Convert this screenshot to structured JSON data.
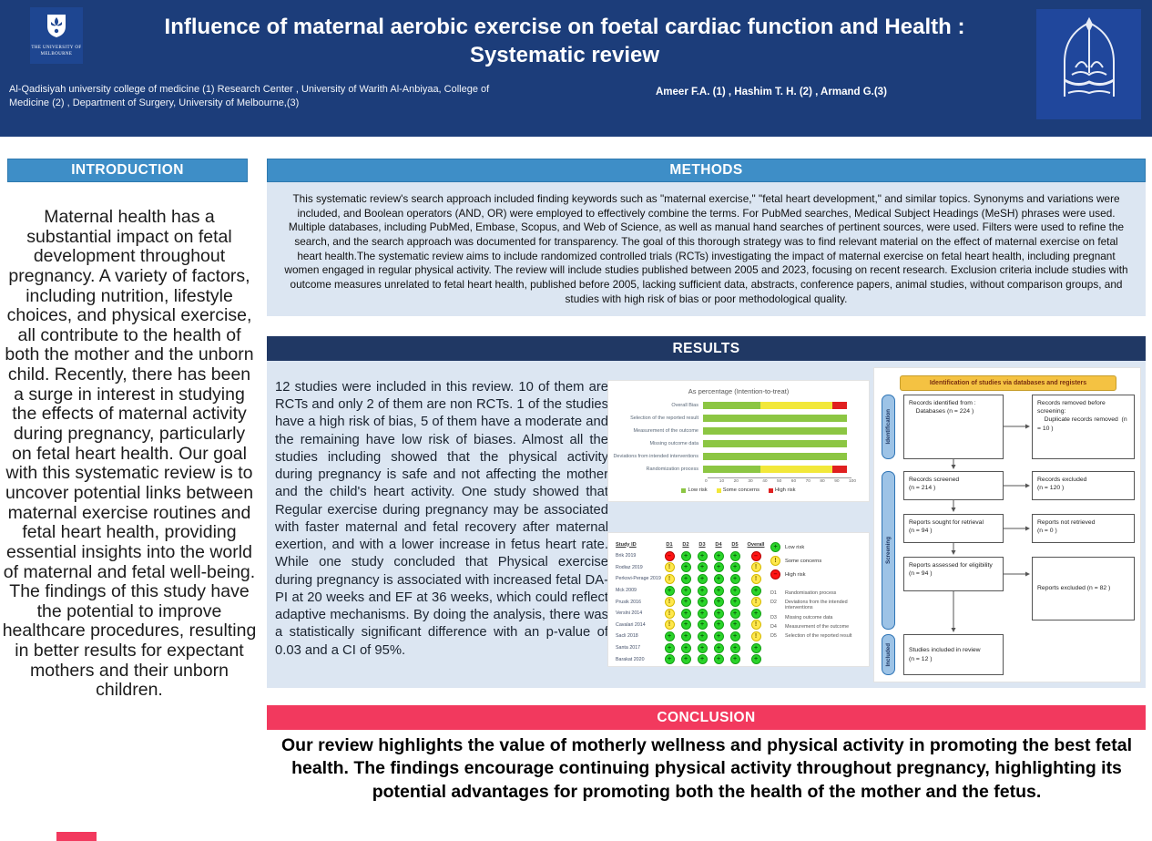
{
  "header": {
    "title_line1": "Influence of maternal aerobic exercise on foetal cardiac function and Health :",
    "title_line2": "Systematic review",
    "affiliations": "Al-Qadisiyah university college of medicine (1)  Research Center , University of Warith Al-Anbiyaa, College of Medicine (2) ,  Department of Surgery, University of Melbourne,(3)",
    "authors": "Ameer F.A. (1) , Hashim T. H. (2)  , Armand G.(3)",
    "melbourne_logo_caption_line1": "THE UNIVERSITY OF",
    "melbourne_logo_caption_line2": "MELBOURNE"
  },
  "introduction": {
    "heading": "INTRODUCTION",
    "body": "Maternal health has a substantial impact on fetal development throughout pregnancy. A variety of factors, including nutrition, lifestyle choices, and physical exercise, all contribute to the health of both the mother and the unborn child. Recently, there has been a surge in interest in studying the effects of maternal activity during pregnancy, particularly on fetal heart health. Our goal with this systematic review is to uncover potential links between maternal exercise routines and fetal heart health, providing essential insights into the world of maternal and fetal well-being. The findings of this study have the potential to improve healthcare procedures, resulting in better results for expectant mothers and their unborn children."
  },
  "methods": {
    "heading": "METHODS",
    "body": "This systematic review's search approach included finding keywords such as \"maternal exercise,\" \"fetal heart development,\" and similar topics. Synonyms and variations were included, and Boolean operators (AND, OR) were employed to effectively combine the terms. For PubMed searches, Medical Subject Headings (MeSH) phrases were used. Multiple databases, including PubMed, Embase, Scopus, and Web of Science, as well as manual hand searches of pertinent sources, were used. Filters were used to refine the search, and the search approach was documented for transparency. The goal of this thorough strategy was to find relevant material on the effect of maternal exercise on fetal heart health.The systematic review aims to include randomized controlled trials (RCTs) investigating the impact of maternal exercise on fetal heart health, including pregnant women engaged in regular physical activity. The review will include studies published between 2005 and 2023, focusing on recent research. Exclusion criteria include studies with outcome measures unrelated to fetal heart health, published before 2005, lacking sufficient data, abstracts, conference papers, animal studies, without comparison groups, and studies with high risk of bias or poor methodological quality."
  },
  "results": {
    "heading": "RESULTS",
    "body": "12 studies were included in this review. 10 of them are RCTs and only 2 of them are non RCTs. 1 of the studies have a high risk of bias, 5 of them have a moderate and the remaining have low risk of biases. Almost all the studies including showed that the physical activity during pregnancy is safe and not affecting the mother and the child's heart activity. One study showed that Regular exercise during pregnancy may be associated with faster maternal and fetal recovery after maternal exertion, and with a lower increase in fetus heart rate. While one study concluded that Physical exercise during pregnancy is associated with increased fetal DA-PI at 20 weeks and EF at 36 weeks, which could reflect adaptive mechanisms. By doing the analysis, there was a statistically significant difference with an p-value of 0.03 and a CI of 95%."
  },
  "conclusion": {
    "heading": "CONCLUSION",
    "body": "Our review highlights the value of motherly wellness and physical activity in promoting the best fetal health. The findings encourage continuing physical activity throughout pregnancy, highlighting its potential advantages for promoting both the health of the mother and the fetus."
  },
  "chart_data": [
    {
      "type": "bar",
      "stacked": true,
      "orientation": "horizontal",
      "title": "As percentage (Intention-to-treat)",
      "categories": [
        "Overall Bias",
        "Selection of the reported result",
        "Measurement of the outcome",
        "Missing outcome data",
        "Deviations from intended interventions",
        "Randomization process"
      ],
      "series": [
        {
          "name": "Low risk",
          "color": "#8cc643",
          "values": [
            40,
            100,
            100,
            100,
            100,
            40
          ]
        },
        {
          "name": "Some concerns",
          "color": "#f2e83a",
          "values": [
            50,
            0,
            0,
            0,
            0,
            50
          ]
        },
        {
          "name": "High risk",
          "color": "#e02020",
          "values": [
            10,
            0,
            0,
            0,
            0,
            10
          ]
        }
      ],
      "xlim": [
        0,
        100
      ],
      "xticks": [
        0,
        10,
        20,
        30,
        40,
        50,
        60,
        70,
        80,
        90,
        100
      ],
      "legend_position": "bottom",
      "grid": false
    },
    {
      "type": "table",
      "columns": [
        "Study ID",
        "D1",
        "D2",
        "D3",
        "D4",
        "D5",
        "Overall"
      ],
      "rows": [
        {
          "study": "Brik 2019",
          "ratings": [
            "high",
            "low",
            "low",
            "low",
            "low",
            "high"
          ]
        },
        {
          "study": "Rodiaz 2019",
          "ratings": [
            "some",
            "low",
            "low",
            "low",
            "low",
            "some"
          ]
        },
        {
          "study": "Perkovi-Perage 2019",
          "ratings": [
            "some",
            "low",
            "low",
            "low",
            "low",
            "some"
          ]
        },
        {
          "study": "Mck 2009",
          "ratings": [
            "low",
            "low",
            "low",
            "low",
            "low",
            "low"
          ]
        },
        {
          "study": "Prusik 2016",
          "ratings": [
            "some",
            "low",
            "low",
            "low",
            "low",
            "some"
          ]
        },
        {
          "study": "Verslni 2014",
          "ratings": [
            "some",
            "low",
            "low",
            "low",
            "low",
            "low"
          ]
        },
        {
          "study": "Cavalari 2014",
          "ratings": [
            "some",
            "low",
            "low",
            "low",
            "low",
            "some"
          ]
        },
        {
          "study": "Sacli 2018",
          "ratings": [
            "low",
            "low",
            "low",
            "low",
            "low",
            "some"
          ]
        },
        {
          "study": "Santa 2017",
          "ratings": [
            "low",
            "low",
            "low",
            "low",
            "low",
            "low"
          ]
        },
        {
          "study": "Barakat 2020",
          "ratings": [
            "low",
            "low",
            "low",
            "low",
            "low",
            "low"
          ]
        }
      ],
      "legend": [
        {
          "level": "low",
          "symbol": "+",
          "label": "Low risk"
        },
        {
          "level": "some",
          "symbol": "!",
          "label": "Some concerns"
        },
        {
          "level": "high",
          "symbol": "–",
          "label": "High risk"
        }
      ],
      "domains": [
        {
          "code": "D1",
          "label": "Randomisation process"
        },
        {
          "code": "D2",
          "label": "Deviations from the intended interventions"
        },
        {
          "code": "D3",
          "label": "Missing outcome data"
        },
        {
          "code": "D4",
          "label": "Measurement of the outcome"
        },
        {
          "code": "D5",
          "label": "Selection of the reported result"
        }
      ],
      "rating_colors": {
        "low": "#2ad42a",
        "some": "#ffe84d",
        "high": "#ff1414"
      }
    }
  ],
  "prisma": {
    "title": "Identification of studies via databases and registers",
    "stage1": "Identification",
    "stage2": "Screening",
    "stage3": "Included",
    "box1": "Records identified from :\n    Databases (n = 224 )",
    "box2": "Records removed before screening:\n    Duplicate records removed  (n = 10 )",
    "box3": "Records screened\n(n = 214 )",
    "box4": "Records excluded\n(n = 120 )",
    "box5": "Reports sought for retrieval\n(n = 94 )",
    "box6": "Reports not retrieved\n(n = 0 )",
    "box7": "Reports assessed for eligibility\n(n = 94 )",
    "box8": "Reports excluded (n = 82 )",
    "box9": "Studies included in review\n(n = 12 )"
  },
  "colors": {
    "header_bg": "#1c3d7a",
    "section_blue": "#3e8ec7",
    "results_navy": "#203864",
    "conclusion_pink": "#f2395e",
    "panel_bg": "#dce6f2",
    "prisma_header_bg": "#f4c242",
    "prisma_stage_bg": "#9dc3e6"
  }
}
